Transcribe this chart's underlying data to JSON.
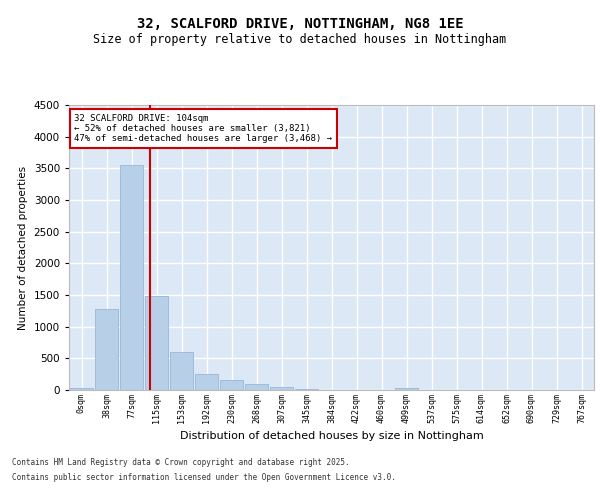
{
  "title_line1": "32, SCALFORD DRIVE, NOTTINGHAM, NG8 1EE",
  "title_line2": "Size of property relative to detached houses in Nottingham",
  "xlabel": "Distribution of detached houses by size in Nottingham",
  "ylabel": "Number of detached properties",
  "bar_color": "#b8cfe8",
  "bar_edge_color": "#8eafd4",
  "background_color": "#dce8f5",
  "grid_color": "#ffffff",
  "vline_color": "#cc0000",
  "vline_x": 2.73,
  "annotation_text": "32 SCALFORD DRIVE: 104sqm\n← 52% of detached houses are smaller (3,821)\n47% of semi-detached houses are larger (3,468) →",
  "annotation_box_color": "#ffffff",
  "annotation_box_edge": "#cc0000",
  "footer_line1": "Contains HM Land Registry data © Crown copyright and database right 2025.",
  "footer_line2": "Contains public sector information licensed under the Open Government Licence v3.0.",
  "categories": [
    "0sqm",
    "38sqm",
    "77sqm",
    "115sqm",
    "153sqm",
    "192sqm",
    "230sqm",
    "268sqm",
    "307sqm",
    "345sqm",
    "384sqm",
    "422sqm",
    "460sqm",
    "499sqm",
    "537sqm",
    "575sqm",
    "614sqm",
    "652sqm",
    "690sqm",
    "729sqm",
    "767sqm"
  ],
  "values": [
    30,
    1280,
    3560,
    1490,
    600,
    245,
    160,
    100,
    55,
    20,
    5,
    0,
    0,
    35,
    0,
    0,
    0,
    0,
    0,
    0,
    0
  ],
  "ylim": [
    0,
    4500
  ],
  "yticks": [
    0,
    500,
    1000,
    1500,
    2000,
    2500,
    3000,
    3500,
    4000,
    4500
  ]
}
